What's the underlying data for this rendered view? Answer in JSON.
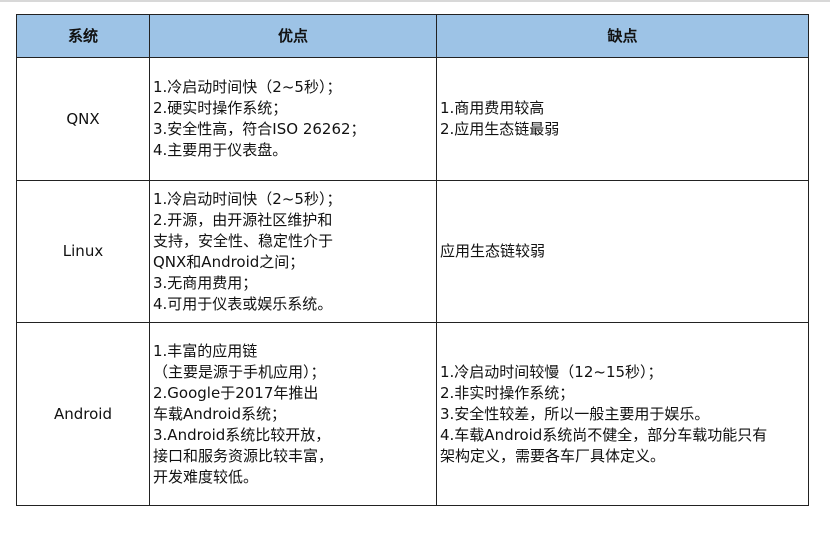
{
  "colors": {
    "header_bg": "#9dc3e6",
    "border": "#222222"
  },
  "headers": [
    "系统",
    "优点",
    "缺点"
  ],
  "rows": [
    {
      "system": "QNX",
      "pros": [
        "1.冷启动时间快（2~5秒）；",
        "2.硬实时操作系统；",
        "3.安全性高，符合ISO 26262；",
        "4.主要用于仪表盘。"
      ],
      "cons": [
        "1.商用费用较高",
        "2.应用生态链最弱"
      ]
    },
    {
      "system": "Linux",
      "pros": [
        "1.冷启动时间快（2~5秒）；",
        "2.开源，由开源社区维护和",
        "支持，安全性、稳定性介于",
        "QNX和Android之间；",
        "3.无商用费用；",
        "4.可用于仪表或娱乐系统。"
      ],
      "cons": [
        "应用生态链较弱"
      ]
    },
    {
      "system": "Android",
      "pros": [
        "1.丰富的应用链",
        "（主要是源于手机应用）；",
        "2.Google于2017年推出",
        "车载Android系统；",
        "3.Android系统比较开放，",
        "接口和服务资源比较丰富，",
        "开发难度较低。"
      ],
      "cons": [
        "1.冷启动时间较慢（12~15秒）；",
        "2.非实时操作系统；",
        "3.安全性较差，所以一般主要用于娱乐。",
        "4.车载Android系统尚不健全，部分车载功能只有",
        "架构定义，需要各车厂具体定义。"
      ]
    }
  ]
}
